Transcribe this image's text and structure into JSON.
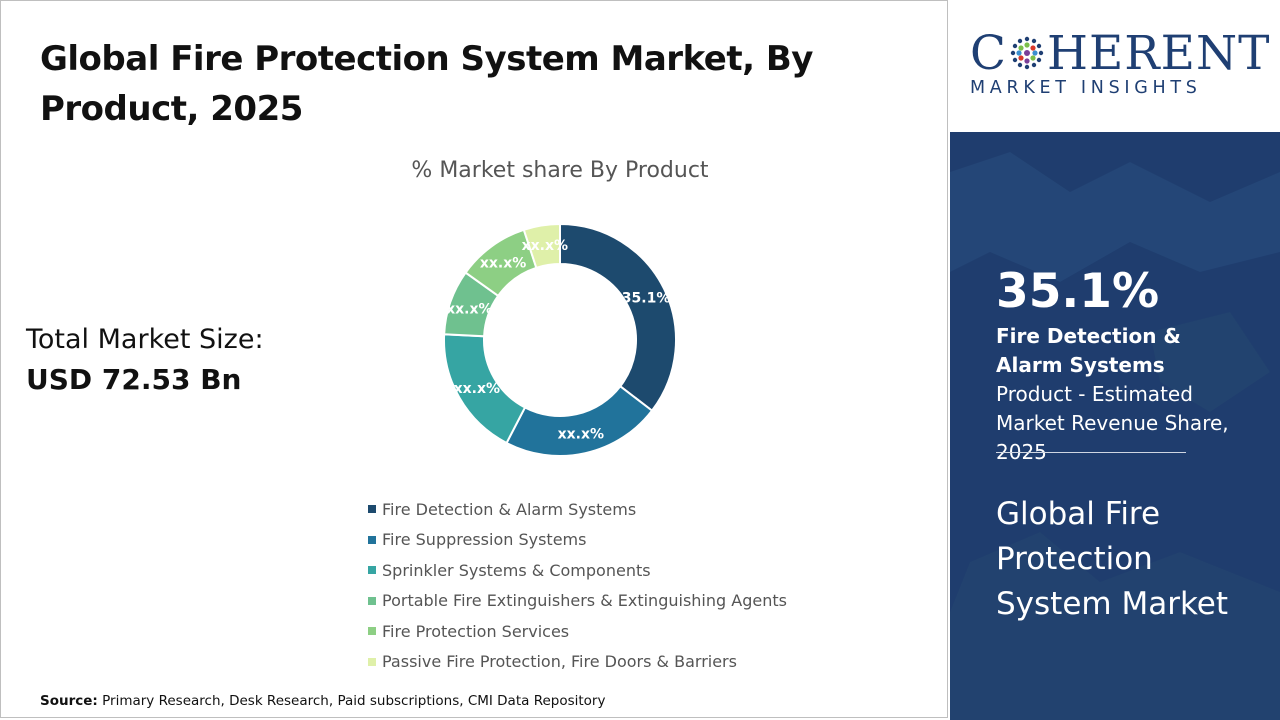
{
  "title": "Global Fire Protection System Market, By Product, 2025",
  "total_market": {
    "label": "Total Market Size:",
    "value": "USD 72.53 Bn"
  },
  "source": {
    "label": "Source:",
    "text": "Primary Research, Desk Research, Paid subscriptions, CMI Data Repository"
  },
  "logo": {
    "main_left": "C",
    "main_right": "HERENT",
    "sub": "MARKET INSIGHTS"
  },
  "highlight": {
    "value": "35.1%",
    "bold_text": "Fire Detection & Alarm Systems",
    "text": " Product - Estimated Market Revenue Share, 2025",
    "market_title": "Global Fire Protection System Market"
  },
  "colors": {
    "panel": "#1f3d6e",
    "brand": "#1f3f73"
  },
  "chart_data": {
    "type": "pie",
    "donut": true,
    "title": "% Market share By Product",
    "labels": [
      "Fire Detection & Alarm Systems",
      "Fire Suppression Systems",
      "Sprinkler Systems & Components",
      "Portable Fire Extinguishers & Extinguishing Agents",
      "Fire Protection Services",
      "Passive Fire Protection, Fire Doors & Barriers"
    ],
    "values": [
      35.1,
      22,
      18,
      9,
      10,
      5
    ],
    "data_labels": [
      "35.1%",
      "xx.x%",
      "xx.x%",
      "xx.x%",
      "xx.x%",
      "xx.x%"
    ],
    "colors": [
      "#1d4a6e",
      "#21739b",
      "#36a5a3",
      "#6fc18f",
      "#8dcf84",
      "#dff0a9"
    ],
    "legend_position": "bottom"
  }
}
